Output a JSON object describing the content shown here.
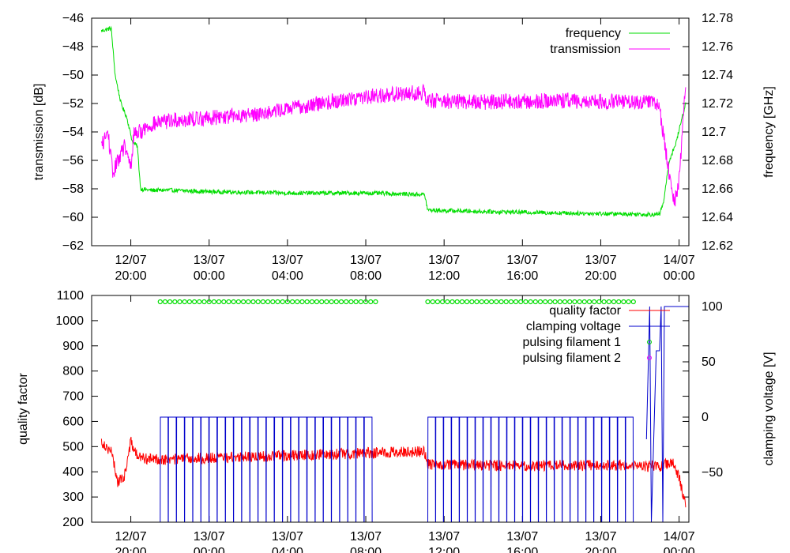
{
  "chart_data": [
    {
      "type": "line",
      "x_axis": {
        "type": "datetime",
        "ticks": [
          {
            "date": "12/07",
            "time": "20:00"
          },
          {
            "date": "13/07",
            "time": "00:00"
          },
          {
            "date": "13/07",
            "time": "04:00"
          },
          {
            "date": "13/07",
            "time": "08:00"
          },
          {
            "date": "13/07",
            "time": "12:00"
          },
          {
            "date": "13/07",
            "time": "16:00"
          },
          {
            "date": "13/07",
            "time": "20:00"
          },
          {
            "date": "14/07",
            "time": "00:00"
          }
        ],
        "range": [
          "2012-07-12T18:00",
          "2012-07-14T00:30"
        ]
      },
      "ylabel_left": "transmission [dB]",
      "ylim_left": [
        -62,
        -46
      ],
      "yticks_left": [
        "−62",
        "−60",
        "−58",
        "−56",
        "−54",
        "−52",
        "−50",
        "−48",
        "−46"
      ],
      "ylabel_right": "frequency [GHz]",
      "ylim_right": [
        12.62,
        12.78
      ],
      "yticks_right": [
        "12.62",
        "12.64",
        "12.66",
        "12.68",
        "12.7",
        "12.72",
        "12.74",
        "12.76",
        "12.78"
      ],
      "legend_position": "top-right",
      "series": [
        {
          "name": "frequency",
          "axis": "right",
          "color": "#00dd00",
          "points": [
            [
              "2012-07-12T18:30",
              12.771
            ],
            [
              "2012-07-12T19:00",
              12.773
            ],
            [
              "2012-07-12T19:12",
              12.74
            ],
            [
              "2012-07-12T19:30",
              12.72
            ],
            [
              "2012-07-12T19:48",
              12.71
            ],
            [
              "2012-07-12T20:05",
              12.693
            ],
            [
              "2012-07-12T20:20",
              12.69
            ],
            [
              "2012-07-12T20:30",
              12.66
            ],
            [
              "2012-07-12T21:00",
              12.659
            ],
            [
              "2012-07-12T22:00",
              12.659
            ],
            [
              "2012-07-13T00:00",
              12.658
            ],
            [
              "2012-07-13T04:00",
              12.657
            ],
            [
              "2012-07-13T08:00",
              12.657
            ],
            [
              "2012-07-13T11:00",
              12.656
            ],
            [
              "2012-07-13T11:10",
              12.645
            ],
            [
              "2012-07-13T14:00",
              12.644
            ],
            [
              "2012-07-13T18:00",
              12.643
            ],
            [
              "2012-07-13T22:30",
              12.642
            ],
            [
              "2012-07-13T23:00",
              12.642
            ],
            [
              "2012-07-13T23:12",
              12.65
            ],
            [
              "2012-07-13T23:30",
              12.68
            ],
            [
              "2012-07-13T23:50",
              12.692
            ],
            [
              "2012-07-14T00:20",
              12.72
            ]
          ]
        },
        {
          "name": "transmission",
          "axis": "left",
          "color": "#ff00ff",
          "points": [
            [
              "2012-07-12T18:30",
              -55
            ],
            [
              "2012-07-12T18:50",
              -54
            ],
            [
              "2012-07-12T19:05",
              -57
            ],
            [
              "2012-07-12T19:20",
              -56
            ],
            [
              "2012-07-12T19:40",
              -55
            ],
            [
              "2012-07-12T20:00",
              -56.5
            ],
            [
              "2012-07-12T20:10",
              -54
            ],
            [
              "2012-07-12T20:30",
              -54
            ],
            [
              "2012-07-12T21:00",
              -53.5
            ],
            [
              "2012-07-12T22:00",
              -53.2
            ],
            [
              "2012-07-13T00:00",
              -53.0
            ],
            [
              "2012-07-13T02:00",
              -52.8
            ],
            [
              "2012-07-13T04:00",
              -52.4
            ],
            [
              "2012-07-13T06:00",
              -51.9
            ],
            [
              "2012-07-13T08:00",
              -51.5
            ],
            [
              "2012-07-13T10:00",
              -51.3
            ],
            [
              "2012-07-13T11:00",
              -51.2
            ],
            [
              "2012-07-13T11:10",
              -51.8
            ],
            [
              "2012-07-13T14:00",
              -51.9
            ],
            [
              "2012-07-13T18:00",
              -51.8
            ],
            [
              "2012-07-13T22:30",
              -51.9
            ],
            [
              "2012-07-13T23:00",
              -52.3
            ],
            [
              "2012-07-13T23:30",
              -57
            ],
            [
              "2012-07-13T23:45",
              -59
            ],
            [
              "2012-07-14T00:00",
              -57.5
            ],
            [
              "2012-07-14T00:20",
              -50.5
            ]
          ]
        }
      ]
    },
    {
      "type": "line",
      "x_axis": {
        "type": "datetime",
        "ticks": [
          {
            "date": "12/07",
            "time": "20:00"
          },
          {
            "date": "13/07",
            "time": "00:00"
          },
          {
            "date": "13/07",
            "time": "04:00"
          },
          {
            "date": "13/07",
            "time": "08:00"
          },
          {
            "date": "13/07",
            "time": "12:00"
          },
          {
            "date": "13/07",
            "time": "16:00"
          },
          {
            "date": "13/07",
            "time": "20:00"
          },
          {
            "date": "14/07",
            "time": "00:00"
          }
        ],
        "range": [
          "2012-07-12T18:00",
          "2012-07-14T00:30"
        ]
      },
      "ylabel_left": "quality factor",
      "ylim_left": [
        200,
        1100
      ],
      "yticks_left": [
        "200",
        "300",
        "400",
        "500",
        "600",
        "700",
        "800",
        "900",
        "1000",
        "1100"
      ],
      "ylabel_right": "clamping voltage [V]",
      "ylim_right": [
        -95,
        110
      ],
      "yticks_right": [
        "−50",
        "0",
        "50",
        "100"
      ],
      "legend_position": "top-right",
      "series": [
        {
          "name": "quality factor",
          "axis": "left",
          "color": "#ff0000",
          "points": [
            [
              "2012-07-12T18:30",
              520
            ],
            [
              "2012-07-12T19:00",
              480
            ],
            [
              "2012-07-12T19:20",
              360
            ],
            [
              "2012-07-12T19:40",
              380
            ],
            [
              "2012-07-12T20:00",
              520
            ],
            [
              "2012-07-12T20:20",
              460
            ],
            [
              "2012-07-12T21:00",
              450
            ],
            [
              "2012-07-12T22:00",
              450
            ],
            [
              "2012-07-13T00:00",
              455
            ],
            [
              "2012-07-13T04:00",
              465
            ],
            [
              "2012-07-13T08:00",
              475
            ],
            [
              "2012-07-13T11:00",
              480
            ],
            [
              "2012-07-13T11:10",
              430
            ],
            [
              "2012-07-13T14:00",
              425
            ],
            [
              "2012-07-13T18:00",
              425
            ],
            [
              "2012-07-13T22:00",
              425
            ],
            [
              "2012-07-13T23:00",
              420
            ],
            [
              "2012-07-13T23:40",
              440
            ],
            [
              "2012-07-14T00:00",
              380
            ],
            [
              "2012-07-14T00:20",
              260
            ]
          ]
        },
        {
          "name": "clamping voltage",
          "axis": "right",
          "color": "#0000cc",
          "segments": [
            {
              "type": "sawtooth",
              "start": "2012-07-12T21:30",
              "end": "2012-07-13T08:20",
              "low": -95,
              "high": 0,
              "cycles": 26
            },
            {
              "type": "sawtooth",
              "start": "2012-07-13T11:10",
              "end": "2012-07-13T21:40",
              "low": -95,
              "high": 0,
              "cycles": 26
            }
          ],
          "points": [
            [
              "2012-07-13T22:20",
              -20
            ],
            [
              "2012-07-13T22:30",
              100
            ],
            [
              "2012-07-13T22:35",
              -95
            ],
            [
              "2012-07-13T22:50",
              60
            ],
            [
              "2012-07-13T23:00",
              60
            ],
            [
              "2012-07-13T23:05",
              100
            ],
            [
              "2012-07-13T23:10",
              -95
            ],
            [
              "2012-07-13T23:15",
              100
            ],
            [
              "2012-07-14T00:30",
              100
            ]
          ]
        },
        {
          "name": "pulsing filament 1",
          "axis": "left",
          "color": "#00dd00",
          "marker": "circle",
          "ranges": [
            {
              "start": "2012-07-12T21:30",
              "end": "2012-07-13T08:30",
              "y": 1075
            },
            {
              "start": "2012-07-13T11:10",
              "end": "2012-07-13T21:40",
              "y": 1075
            }
          ]
        },
        {
          "name": "pulsing filament 2",
          "axis": "left",
          "color": "#ff00ff",
          "marker": "circle",
          "ranges": []
        }
      ]
    }
  ]
}
